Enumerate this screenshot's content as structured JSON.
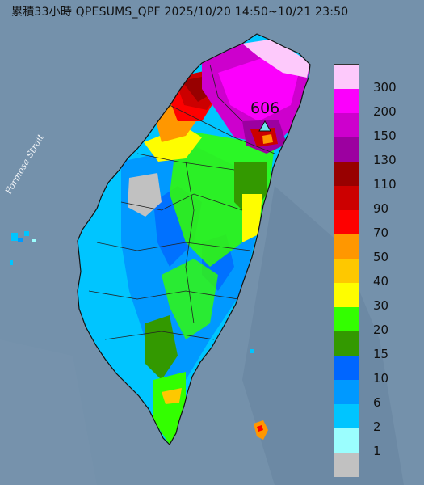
{
  "title": "累積33小時 QPESUMS_QPF 2025/10/20 14:50~10/21 23:50",
  "sea_label": "Formosa Strait",
  "max_marker": {
    "value": "606",
    "icon": "triangle-icon",
    "color": "#6fe6ee"
  },
  "legend": [
    {
      "label": "300",
      "color": "#fdc9fb"
    },
    {
      "label": "200",
      "color": "#fb00fc"
    },
    {
      "label": "150",
      "color": "#cd00cd"
    },
    {
      "label": "130",
      "color": "#9c00a0"
    },
    {
      "label": "110",
      "color": "#980000"
    },
    {
      "label": "90",
      "color": "#cc0000"
    },
    {
      "label": "70",
      "color": "#fe0000"
    },
    {
      "label": "50",
      "color": "#ff9700"
    },
    {
      "label": "40",
      "color": "#fec800"
    },
    {
      "label": "30",
      "color": "#fefd00"
    },
    {
      "label": "20",
      "color": "#33ff00"
    },
    {
      "label": "15",
      "color": "#339900"
    },
    {
      "label": "10",
      "color": "#0066ff"
    },
    {
      "label": "6",
      "color": "#0099ff"
    },
    {
      "label": "2",
      "color": "#00c5ff"
    },
    {
      "label": "1",
      "color": "#9bfefe"
    },
    {
      "label": "",
      "color": "#c1c1c1"
    }
  ]
}
